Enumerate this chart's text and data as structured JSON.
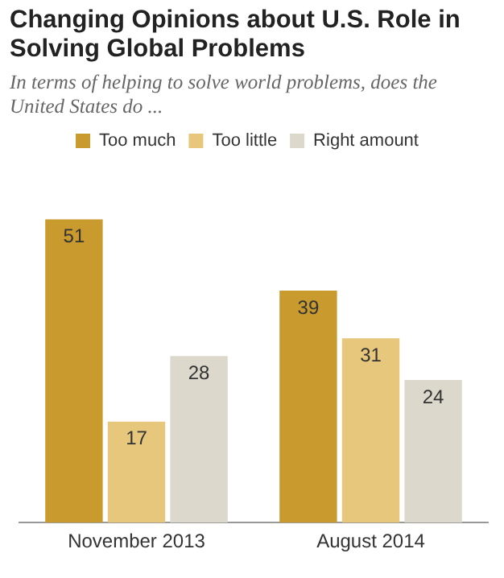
{
  "chart_data": {
    "type": "bar",
    "title": "Changing Opinions about U.S. Role in Solving Global Problems",
    "subtitle": "In terms of helping to solve world problems, does the United States do ...",
    "categories": [
      "November 2013",
      "August 2014"
    ],
    "series": [
      {
        "name": "Too much",
        "color": "#c99a2e",
        "values": [
          51,
          39
        ]
      },
      {
        "name": "Too little",
        "color": "#e6c77c",
        "values": [
          17,
          31
        ]
      },
      {
        "name": "Right amount",
        "color": "#dcd8cc",
        "values": [
          28,
          24
        ]
      }
    ],
    "data_labels": true,
    "legend": "top",
    "grid": false,
    "relative": false
  }
}
